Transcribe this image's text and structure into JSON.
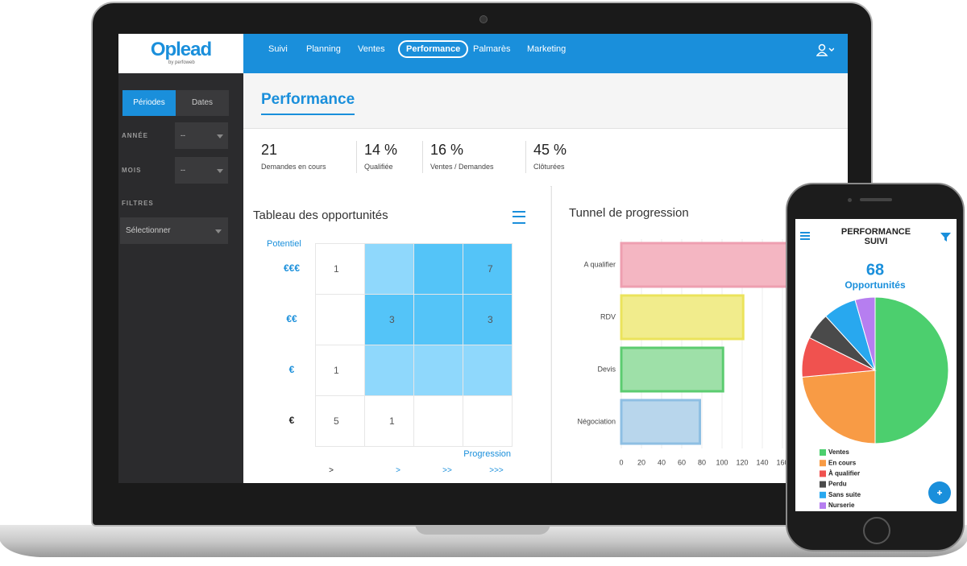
{
  "logo": {
    "name": "Oplead",
    "tagline": "by perfoweb"
  },
  "nav": {
    "items": [
      "Suivi",
      "Planning",
      "Ventes",
      "Performance",
      "Palmarès",
      "Marketing"
    ],
    "active": 3
  },
  "sidebar": {
    "tabs": [
      "Périodes",
      "Dates"
    ],
    "fields": [
      {
        "label": "ANNÉE",
        "value": "--"
      },
      {
        "label": "MOIS",
        "value": "--"
      }
    ],
    "filters_label": "FILTRES",
    "filter_value": "Sélectionner"
  },
  "page_title": "Performance",
  "kpis": [
    {
      "value": "21",
      "label": "Demandes en cours"
    },
    {
      "value": "14 %",
      "label": "Qualifiée"
    },
    {
      "value": "16 %",
      "label": "Ventes / Demandes"
    },
    {
      "value": "45 %",
      "label": "Clôturées"
    }
  ],
  "matrix": {
    "title": "Tableau des opportunités",
    "y_label": "Potentiel",
    "x_label": "Progression",
    "rows": [
      "€€€",
      "€€",
      "€",
      "€"
    ],
    "columns": [
      ">",
      ">",
      ">>",
      ">>>"
    ],
    "cells": [
      [
        1,
        null,
        null,
        7
      ],
      [
        null,
        3,
        null,
        3
      ],
      [
        1,
        null,
        null,
        null
      ],
      [
        5,
        1,
        null,
        null
      ]
    ],
    "colors": [
      [
        "#ffffff",
        "#8fd8fc",
        "#54c4f8",
        "#54c4f8"
      ],
      [
        "#ffffff",
        "#54c4f8",
        "#54c4f8",
        "#54c4f8"
      ],
      [
        "#ffffff",
        "#8fd8fc",
        "#8fd8fc",
        "#8fd8fc"
      ],
      [
        "#ffffff",
        "#ffffff",
        "#ffffff",
        "#ffffff"
      ]
    ]
  },
  "chart_data": [
    {
      "type": "bar",
      "orientation": "horizontal",
      "title": "Tunnel de progression",
      "categories": [
        "A qualifier",
        "RDV",
        "Devis",
        "Négociation"
      ],
      "values": [
        180,
        121,
        101,
        78
      ],
      "colors": [
        "#f4b6c2",
        "#f1ec8c",
        "#9ee0a8",
        "#b8d6ec"
      ],
      "borders": [
        "#ee9fb0",
        "#ebe35c",
        "#5ccc70",
        "#8ebfe3"
      ],
      "xlim": [
        0,
        180
      ],
      "xticks": [
        0,
        20,
        40,
        60,
        80,
        100,
        120,
        140,
        160
      ],
      "grid": true
    },
    {
      "type": "pie",
      "title": "PERFORMANCE",
      "subtitle": "SUIVI",
      "total": "68",
      "total_label": "Opportunités",
      "categories": [
        "Ventes",
        "En cours",
        "À qualifier",
        "Perdu",
        "Sans suite",
        "Nurserie"
      ],
      "values": [
        34,
        16,
        6,
        4,
        5,
        3
      ],
      "colors": [
        "#4ccf6e",
        "#f89b45",
        "#f0524f",
        "#4a4a4a",
        "#28a8ef",
        "#b67ef0"
      ]
    }
  ]
}
